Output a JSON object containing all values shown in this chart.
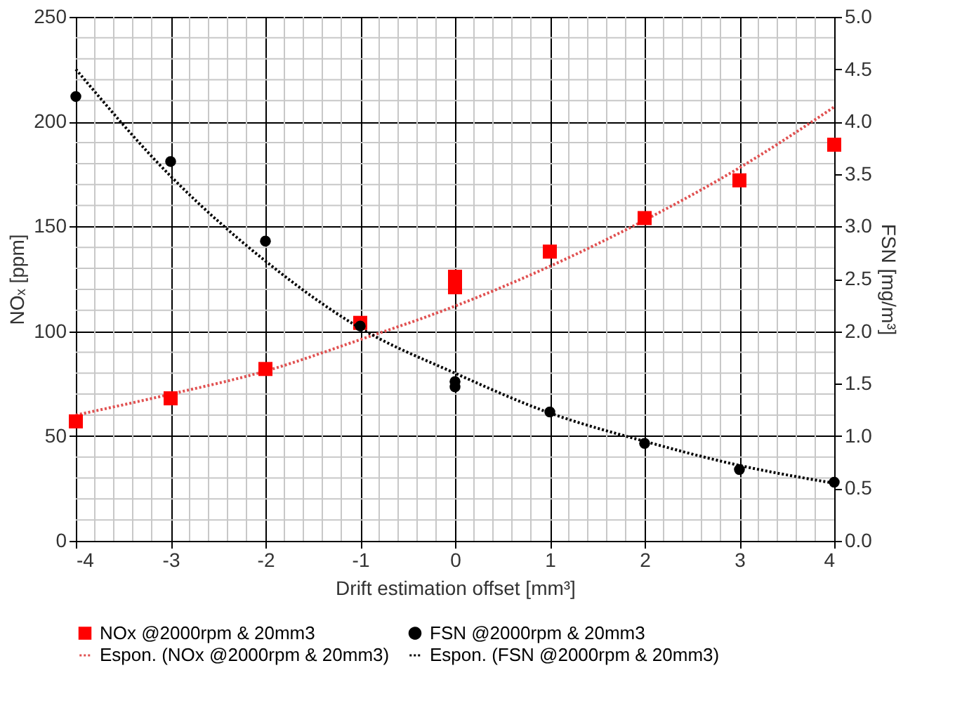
{
  "chart_data": {
    "type": "scatter",
    "xlabel": "Drift estimation offset [mm³]",
    "ylabel": "NOₓ [ppm]",
    "y2label": "FSN [mg/m³]",
    "xlim": [
      -4,
      4
    ],
    "xticks": [
      -4,
      -3,
      -2,
      -1,
      0,
      1,
      2,
      3,
      4
    ],
    "ylim": [
      0,
      250
    ],
    "yticks": [
      0,
      50,
      100,
      150,
      200,
      250
    ],
    "y2lim": [
      0,
      5
    ],
    "y2ticks": [
      {
        "value": 0,
        "label": "0.0"
      },
      {
        "value": 0.5,
        "label": "0.5"
      },
      {
        "value": 1,
        "label": "1.0"
      },
      {
        "value": 1.5,
        "label": "1.5"
      },
      {
        "value": 2,
        "label": "2.0"
      },
      {
        "value": 2.5,
        "label": "2.5"
      },
      {
        "value": 3,
        "label": "3.0"
      },
      {
        "value": 3.5,
        "label": "3.5"
      },
      {
        "value": 4,
        "label": "4.0"
      },
      {
        "value": 4.5,
        "label": "4.5"
      },
      {
        "value": 5,
        "label": "5.0"
      }
    ],
    "grid": true,
    "legend": "bottom",
    "series": [
      {
        "name": "NOx @2000rpm & 20mm3",
        "marker": "square",
        "color": "#ff0000",
        "x": [
          -4,
          -3,
          -2,
          -1,
          0,
          0,
          1,
          2,
          3,
          4
        ],
        "values": [
          57,
          68,
          82,
          104,
          126,
          121,
          138,
          154,
          172,
          189
        ]
      },
      {
        "name": "FSN @2000rpm & 20mm3",
        "marker": "circle",
        "color": "#000000",
        "axis": "y2",
        "x": [
          -4,
          -3,
          -2,
          -1,
          0,
          0,
          1,
          2,
          3,
          4
        ],
        "values": [
          4.24,
          3.62,
          2.86,
          2.05,
          1.52,
          1.47,
          1.23,
          0.93,
          0.68,
          0.56
        ]
      },
      {
        "name": "Espon. (NOx @2000rpm & 20mm3)",
        "type": "line",
        "marker": "none",
        "line_style": "dotted",
        "color": "#e05050",
        "x": [
          -4,
          -3,
          -2,
          -1,
          0,
          1,
          2,
          3,
          4
        ],
        "values": [
          60,
          70,
          81,
          96,
          112,
          131,
          153,
          178,
          207
        ]
      },
      {
        "name": "Espon. (FSN @2000rpm & 20mm3)",
        "type": "line",
        "marker": "none",
        "line_style": "dotted",
        "color": "#000000",
        "axis": "y2",
        "x": [
          -4,
          -3,
          -2,
          -1,
          0,
          1,
          2,
          3,
          4
        ],
        "values": [
          4.5,
          3.48,
          2.67,
          2.03,
          1.6,
          1.22,
          0.95,
          0.72,
          0.55
        ]
      }
    ]
  }
}
